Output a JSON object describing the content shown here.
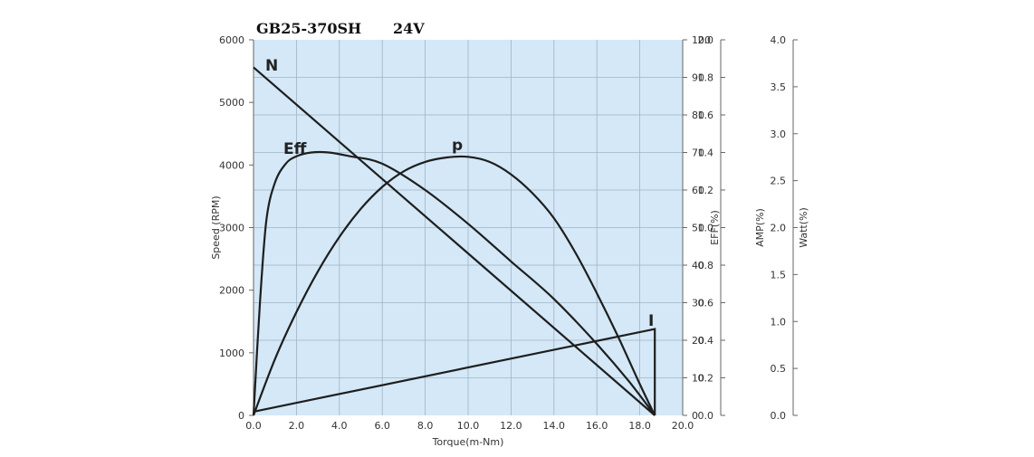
{
  "title": {
    "model": "GB25-370SH",
    "voltage": "24V"
  },
  "colors": {
    "plot_background": "#d4e8f7",
    "curve": "#1e1e1e",
    "grid": "#9fb4c6"
  },
  "chart_data": {
    "type": "line",
    "grid": true,
    "xlabel": "Torque(m-Nm)",
    "xlim": [
      0,
      20
    ],
    "x_ticks": [
      "0.0",
      "2.0",
      "4.0",
      "6.0",
      "8.0",
      "10.0",
      "12.0",
      "14.0",
      "16.0",
      "18.0",
      "20.0"
    ],
    "axes": [
      {
        "id": "speed",
        "label": "Speed (RPM)",
        "side": "left",
        "range": [
          0,
          6000
        ],
        "ticks": [
          "0",
          "1000",
          "2000",
          "3000",
          "4000",
          "5000",
          "6000"
        ]
      },
      {
        "id": "eff",
        "label": "EFF(%)",
        "side": "right",
        "range": [
          0,
          100
        ],
        "ticks": [
          "0",
          "10",
          "20",
          "30",
          "40",
          "50",
          "60",
          "70",
          "80",
          "90",
          "100"
        ]
      },
      {
        "id": "amp",
        "label": "AMP(%)",
        "side": "right",
        "range": [
          0,
          2.0
        ],
        "ticks": [
          "0.0",
          "0.2",
          "0.4",
          "0.6",
          "0.8",
          "1.0",
          "1.2",
          "1.4",
          "1.6",
          "1.8",
          "2.0"
        ]
      },
      {
        "id": "watt",
        "label": "Watt(%)",
        "side": "right",
        "range": [
          0,
          4.0
        ],
        "ticks": [
          "0.0",
          "0.5",
          "1.0",
          "1.5",
          "2.0",
          "2.5",
          "3.0",
          "3.5",
          "4.0"
        ]
      }
    ],
    "series": [
      {
        "name": "N",
        "axis": "speed",
        "points": [
          [
            0.0,
            5560
          ],
          [
            18.7,
            0
          ]
        ]
      },
      {
        "name": "Eff",
        "axis": "eff",
        "points": [
          [
            0.0,
            0
          ],
          [
            0.3,
            30
          ],
          [
            0.6,
            52
          ],
          [
            1.0,
            62
          ],
          [
            1.5,
            67
          ],
          [
            2.0,
            69
          ],
          [
            2.7,
            70
          ],
          [
            3.5,
            70
          ],
          [
            4.5,
            69
          ],
          [
            6.0,
            67
          ],
          [
            8.0,
            60
          ],
          [
            10.0,
            51
          ],
          [
            12.0,
            41
          ],
          [
            14.0,
            31
          ],
          [
            16.0,
            19
          ],
          [
            17.5,
            9
          ],
          [
            18.7,
            0
          ]
        ]
      },
      {
        "name": "p",
        "axis": "speed",
        "points": [
          [
            0.0,
            0
          ],
          [
            1.0,
            900
          ],
          [
            2.0,
            1650
          ],
          [
            3.0,
            2300
          ],
          [
            4.0,
            2850
          ],
          [
            5.0,
            3300
          ],
          [
            6.0,
            3650
          ],
          [
            7.0,
            3900
          ],
          [
            8.0,
            4050
          ],
          [
            9.0,
            4120
          ],
          [
            10.0,
            4130
          ],
          [
            11.0,
            4050
          ],
          [
            12.0,
            3850
          ],
          [
            13.0,
            3550
          ],
          [
            14.0,
            3150
          ],
          [
            15.0,
            2600
          ],
          [
            16.0,
            1950
          ],
          [
            17.0,
            1250
          ],
          [
            18.0,
            500
          ],
          [
            18.7,
            0
          ]
        ]
      },
      {
        "name": "I",
        "axis": "amp",
        "points": [
          [
            0.0,
            0.02
          ],
          [
            18.7,
            0.46
          ],
          [
            18.7,
            0.0
          ]
        ]
      }
    ]
  }
}
